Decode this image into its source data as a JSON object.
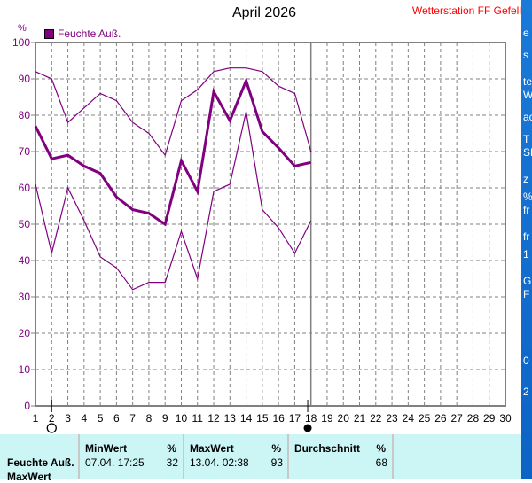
{
  "header": {
    "title": "April 2026",
    "station": "Wetterstation FF Gefell"
  },
  "chart_data": {
    "type": "line",
    "title": "April 2026",
    "ylabel": "%",
    "ylim": [
      0,
      100
    ],
    "yticks": [
      0,
      10,
      20,
      30,
      40,
      50,
      60,
      70,
      80,
      90,
      100
    ],
    "xlim": [
      1,
      30
    ],
    "xticks": [
      "1",
      "2",
      "3",
      "4",
      "5",
      "6",
      "7",
      "8",
      "9",
      "10",
      "11",
      "12",
      "13",
      "14",
      "15",
      "16",
      "17",
      "18",
      "19",
      "20",
      "21",
      "22",
      "23",
      "24",
      "25",
      "26",
      "27",
      "28",
      "29",
      "30"
    ],
    "legend": [
      {
        "label": "Feuchte Auß.",
        "color": "#800080"
      }
    ],
    "legend_position": "top-left",
    "grid": true,
    "current_day": 18,
    "moon": {
      "new_moon_day": 2,
      "full_moon_day": 17.8
    },
    "x": [
      1,
      2,
      3,
      4,
      5,
      6,
      7,
      8,
      9,
      10,
      11,
      12,
      13,
      14,
      15,
      16,
      17,
      18
    ],
    "series": [
      {
        "name": "Feuchte Auß. Durchschnitt",
        "color": "#800080",
        "values": [
          77,
          68,
          69,
          66,
          64,
          57.5,
          54,
          53,
          50,
          67.5,
          59,
          86.5,
          78.5,
          89.5,
          75.5,
          71,
          66,
          67
        ]
      },
      {
        "name": "Feuchte Auß. MaxWert",
        "color": "#800080",
        "values": [
          92,
          90,
          78,
          82,
          86,
          84,
          78,
          75,
          69,
          84,
          87,
          92,
          93,
          93,
          92,
          88,
          86,
          70
        ]
      },
      {
        "name": "Feuchte Auß. MinWert",
        "color": "#800080",
        "values": [
          61,
          42,
          60,
          51,
          41,
          38,
          32,
          34,
          34,
          48,
          35,
          59,
          61,
          81,
          54,
          49,
          42,
          51
        ]
      }
    ]
  },
  "stats": {
    "row_label": "Feuchte Auß.",
    "row_label2": "MaxWert",
    "min": {
      "label": "MinWert",
      "unit": "%",
      "time": "07.04.  17:25",
      "value": "32"
    },
    "max": {
      "label": "MaxWert",
      "unit": "%",
      "time": "13.04.  02:38",
      "value": "93"
    },
    "avg": {
      "label": "Durchschnitt",
      "unit": "%",
      "value": "68"
    }
  },
  "background_window": {
    "fragments": [
      "e",
      "s",
      "te",
      "W",
      "ac",
      "T",
      "SP",
      "z",
      "%",
      "fr",
      "fr",
      "1",
      "G",
      "F",
      "0",
      "2"
    ]
  }
}
